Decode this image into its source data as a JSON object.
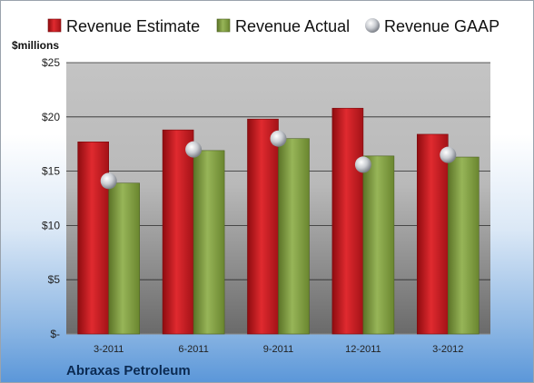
{
  "chart_data": {
    "type": "bar",
    "categories": [
      "3-2011",
      "6-2011",
      "9-2011",
      "12-2011",
      "3-2012"
    ],
    "series": [
      {
        "name": "Revenue Estimate",
        "values": [
          17.7,
          18.8,
          19.8,
          20.8,
          18.4
        ],
        "color": "#c8161d"
      },
      {
        "name": "Revenue Actual",
        "values": [
          13.9,
          16.9,
          18.0,
          16.4,
          16.3
        ],
        "color": "#7f9d3c"
      },
      {
        "name": "Revenue GAAP",
        "values": [
          14.1,
          17.0,
          18.0,
          15.6,
          16.5
        ],
        "color": "#c9ccd1",
        "marker": "sphere"
      }
    ],
    "ylabel": "$millions",
    "yticks": [
      "$-",
      "$5",
      "$10",
      "$15",
      "$20",
      "$25"
    ],
    "ytick_values": [
      0,
      5,
      10,
      15,
      20,
      25
    ],
    "ylim": [
      0,
      25
    ],
    "grid": true,
    "legend": "top",
    "company": "Abraxas Petroleum"
  }
}
